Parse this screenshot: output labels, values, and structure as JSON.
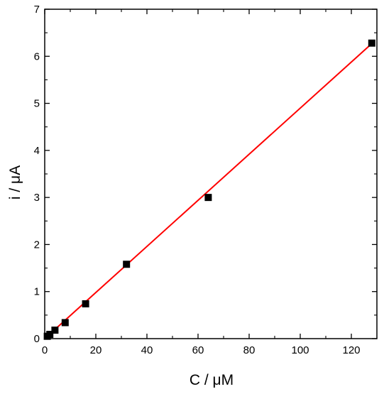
{
  "chart_data": {
    "type": "scatter",
    "title": "",
    "xlabel": "C / μM",
    "ylabel": "i / μA",
    "xlim": [
      0,
      130
    ],
    "ylim": [
      0,
      7
    ],
    "x_ticks": [
      0,
      20,
      40,
      60,
      80,
      100,
      120
    ],
    "y_ticks": [
      0,
      1,
      2,
      3,
      4,
      5,
      6,
      7
    ],
    "x_tick_labels": [
      "0",
      "20",
      "40",
      "60",
      "80",
      "100",
      "120"
    ],
    "y_tick_labels": [
      "0",
      "1",
      "2",
      "3",
      "4",
      "5",
      "6",
      "7"
    ],
    "grid": false,
    "legend": "none",
    "series": [
      {
        "kind": "points",
        "marker": "square",
        "color": "#000000",
        "x": [
          1,
          2,
          4,
          8,
          16,
          32,
          64,
          128
        ],
        "y": [
          0.05,
          0.09,
          0.18,
          0.34,
          0.74,
          1.58,
          3.0,
          6.28
        ]
      },
      {
        "kind": "fit-line",
        "color": "#ff0000",
        "x": [
          0,
          128
        ],
        "y": [
          0.0,
          6.27
        ]
      }
    ]
  }
}
